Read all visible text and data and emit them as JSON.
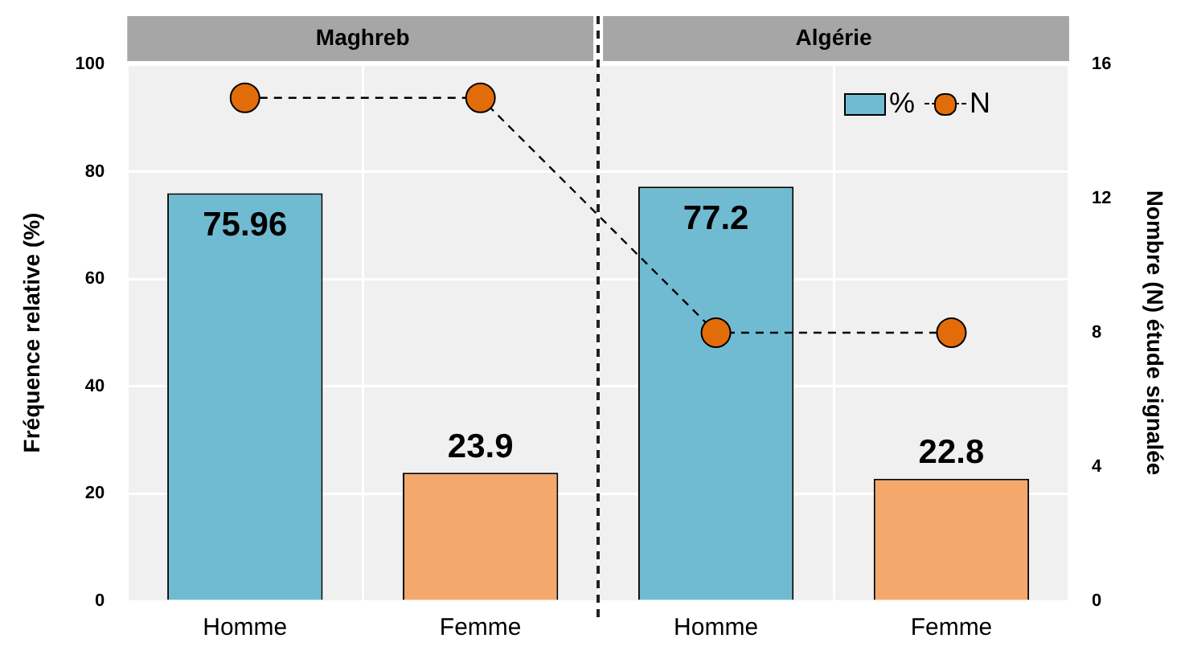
{
  "chart_data": {
    "type": "bar",
    "categories": [
      "Homme",
      "Femme",
      "Homme",
      "Femme"
    ],
    "ylabel": "Fréquence relative (%)",
    "y2label": "Nombre (N) étude signalée",
    "annotations": [
      "Maghreb",
      "Algérie"
    ],
    "series": [
      {
        "name": "%",
        "colors": [
          "#71bbd2",
          "#f4a86c",
          "#71bbd2",
          "#f4a86c"
        ],
        "values": [
          75.96,
          23.9,
          77.2,
          22.8
        ],
        "value_labels": [
          "75.96",
          "23.9",
          "77.2",
          "22.8"
        ]
      },
      {
        "name": "N",
        "type": "line",
        "axis": "y2",
        "color": "#e36c0a",
        "values": [
          15,
          15,
          8,
          8
        ],
        "marker": "circle",
        "line_style": "dashed"
      }
    ],
    "ylim": [
      0,
      100
    ],
    "yticks": [
      0,
      20,
      40,
      60,
      80,
      100
    ],
    "y2lim": [
      0,
      16
    ],
    "y2ticks": [
      0,
      4,
      8,
      12,
      16
    ],
    "grid": true,
    "legend": "top right"
  }
}
